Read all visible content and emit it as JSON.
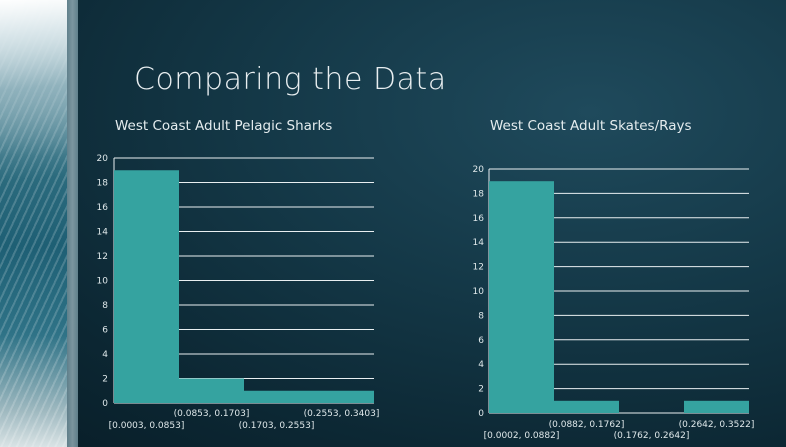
{
  "slide": {
    "title": "Comparing the Data"
  },
  "chart_data": [
    {
      "type": "bar",
      "title": "West Coast Adult Pelagic Sharks",
      "categories": [
        "[0.0003, 0.0853]",
        "(0.0853, 0.1703]",
        "(0.1703, 0.2553]",
        "(0.2553, 0.3403]"
      ],
      "values": [
        19,
        2,
        1,
        1
      ],
      "xlabel": "",
      "ylabel": "",
      "ylim": [
        0,
        20
      ],
      "yticks": [
        0,
        2,
        4,
        6,
        8,
        10,
        12,
        14,
        16,
        18,
        20
      ],
      "grid": true,
      "bar_color": "#35a3a0"
    },
    {
      "type": "bar",
      "title": "West Coast Adult Skates/Rays",
      "categories": [
        "[0.0002, 0.0882]",
        "(0.0882, 0.1762]",
        "(0.1762, 0.2642]",
        "(0.2642, 0.3522]"
      ],
      "values": [
        19,
        1,
        0,
        1
      ],
      "xlabel": "",
      "ylabel": "",
      "ylim": [
        0,
        20
      ],
      "yticks": [
        0,
        2,
        4,
        6,
        8,
        10,
        12,
        14,
        16,
        18,
        20
      ],
      "grid": true,
      "bar_color": "#35a3a0"
    }
  ]
}
